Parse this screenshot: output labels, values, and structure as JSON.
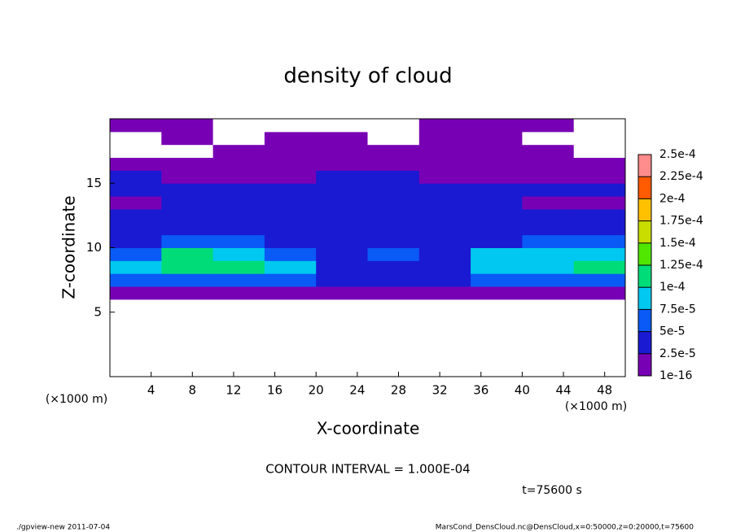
{
  "chart_data": {
    "type": "heatmap",
    "title": "density of cloud",
    "x_label": "X-coordinate",
    "y_label": "Z-coordinate",
    "x_unit_labels": [
      "(×1000 m)",
      "(×1000 m)"
    ],
    "contour_note": "CONTOUR INTERVAL = 1.000E-04",
    "time_label": "t=75600 s",
    "footer_left": "./gpview-new  2011-07-04",
    "footer_right": "MarsCond_DensCloud.nc@DensCloud,x=0:50000,z=0:20000,t=75600",
    "xlim": [
      0,
      50
    ],
    "ylim": [
      0,
      20
    ],
    "xticks": [
      4,
      8,
      12,
      16,
      20,
      24,
      28,
      32,
      36,
      40,
      44,
      48
    ],
    "yticks": [
      5,
      10,
      15
    ],
    "x_edges": [
      0,
      5,
      10,
      15,
      20,
      25,
      30,
      35,
      40,
      45,
      50
    ],
    "z_edges": [
      0,
      1,
      2,
      3,
      4,
      5,
      6,
      7,
      8,
      9,
      10,
      11,
      12,
      13,
      14,
      15,
      16,
      17,
      18,
      19,
      20
    ],
    "levels": [
      {
        "value": 1e-16,
        "label": "1e-16"
      },
      {
        "value": 2.5e-05,
        "label": "2.5e-5"
      },
      {
        "value": 5e-05,
        "label": "5e-5"
      },
      {
        "value": 7.5e-05,
        "label": "7.5e-5"
      },
      {
        "value": 0.0001,
        "label": "1e-4"
      },
      {
        "value": 0.000125,
        "label": "1.25e-4"
      },
      {
        "value": 0.00015,
        "label": "1.5e-4"
      },
      {
        "value": 0.000175,
        "label": "1.75e-4"
      },
      {
        "value": 0.0002,
        "label": "2e-4"
      },
      {
        "value": 0.000225,
        "label": "2.25e-4"
      },
      {
        "value": 0.00025,
        "label": "2.5e-4"
      }
    ],
    "colors": [
      "#7800b4",
      "#1a1ad2",
      "#0a5af5",
      "#00c8f0",
      "#00dc78",
      "#50e600",
      "#c8dc00",
      "#ffc000",
      "#ff5a00",
      "#ff8c8c"
    ],
    "values": [
      [
        0,
        0,
        0,
        0,
        0,
        0,
        0,
        0,
        0,
        0
      ],
      [
        0,
        0,
        0,
        0,
        0,
        0,
        0,
        0,
        0,
        0
      ],
      [
        0,
        0,
        0,
        0,
        0,
        0,
        0,
        0,
        0,
        0
      ],
      [
        0,
        0,
        0,
        0,
        0,
        0,
        0,
        0,
        0,
        0
      ],
      [
        0,
        0,
        0,
        0,
        0,
        0,
        0,
        0,
        0,
        0
      ],
      [
        0,
        0,
        0,
        0,
        0,
        0,
        0,
        0,
        0,
        0
      ],
      [
        1e-05,
        1e-05,
        1e-05,
        1e-05,
        1e-05,
        1e-05,
        1e-05,
        1e-05,
        1e-05,
        1e-05
      ],
      [
        5.5e-05,
        6e-05,
        6e-05,
        5.5e-05,
        3.5e-05,
        3e-05,
        4e-05,
        5.5e-05,
        6e-05,
        6e-05
      ],
      [
        8e-05,
        0.000105,
        0.000105,
        8e-05,
        4e-05,
        3e-05,
        4e-05,
        8e-05,
        9e-05,
        0.000105
      ],
      [
        6e-05,
        0.000105,
        9e-05,
        6e-05,
        4e-05,
        5e-05,
        3.5e-05,
        8e-05,
        8.5e-05,
        9e-05
      ],
      [
        4e-05,
        5e-05,
        5e-05,
        4e-05,
        3e-05,
        4e-05,
        3e-05,
        4e-05,
        5e-05,
        5e-05
      ],
      [
        3e-05,
        4e-05,
        4e-05,
        3e-05,
        3e-05,
        3.5e-05,
        3e-05,
        3e-05,
        3.5e-05,
        3.5e-05
      ],
      [
        3e-05,
        3e-05,
        3e-05,
        3e-05,
        3e-05,
        3e-05,
        3e-05,
        3e-05,
        3e-05,
        3e-05
      ],
      [
        1e-05,
        3e-05,
        3e-05,
        3e-05,
        3e-05,
        3e-05,
        3e-05,
        3e-05,
        1e-05,
        1e-05
      ],
      [
        3e-05,
        3e-05,
        3e-05,
        3e-05,
        3e-05,
        3e-05,
        3e-05,
        3e-05,
        3e-05,
        3e-05
      ],
      [
        3e-05,
        2e-05,
        1e-05,
        1e-05,
        3e-05,
        3e-05,
        1e-05,
        1e-05,
        1e-05,
        1e-05
      ],
      [
        1e-05,
        1e-05,
        1e-05,
        1e-05,
        1e-05,
        1e-05,
        1e-05,
        1e-05,
        1e-05,
        1e-05
      ],
      [
        0,
        0,
        1e-05,
        1e-05,
        1e-05,
        1e-05,
        1e-05,
        1e-05,
        1e-05,
        0
      ],
      [
        0,
        1e-05,
        0,
        1e-05,
        1e-05,
        0,
        1e-05,
        1e-05,
        0,
        0
      ],
      [
        1e-05,
        1e-05,
        0,
        0,
        0,
        0,
        1e-05,
        1e-05,
        1e-05,
        0
      ]
    ]
  }
}
